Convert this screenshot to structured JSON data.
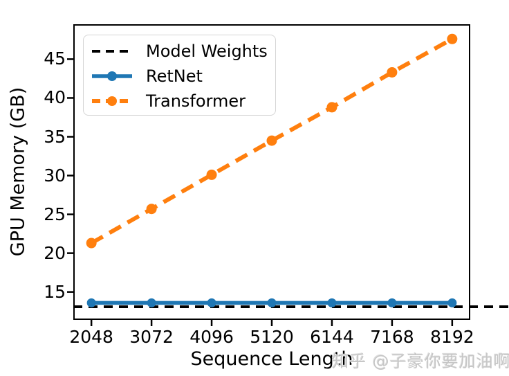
{
  "figure": {
    "background": "#ffffff",
    "watermark": "知乎 @子豪你要加油啊",
    "watermark_color": "#c6c6c6"
  },
  "chart_data": {
    "type": "line",
    "title": "",
    "xlabel": "Sequence Length",
    "ylabel": "GPU Memory (GB)",
    "x": [
      2048,
      3072,
      4096,
      5120,
      6144,
      7168,
      8192
    ],
    "series": [
      {
        "name": "Model Weights",
        "color": "#000000",
        "line_style": "dashed",
        "marker": false,
        "constant_value": 13.1,
        "extends_past_right_spine": true,
        "line_width": 4
      },
      {
        "name": "RetNet",
        "color": "#1f77b4",
        "line_style": "solid",
        "marker": true,
        "values": [
          13.6,
          13.6,
          13.6,
          13.6,
          13.6,
          13.6,
          13.6
        ],
        "line_width": 5.5
      },
      {
        "name": "Transformer",
        "color": "#ff7f0e",
        "line_style": "dashed",
        "marker": true,
        "values": [
          21.3,
          25.7,
          30.1,
          34.5,
          38.8,
          43.3,
          47.6
        ],
        "line_width": 6
      }
    ],
    "axes": {
      "xlim": [
        1740,
        8500
      ],
      "ylim": [
        11.4,
        49.5
      ],
      "xticks": [
        2048,
        3072,
        4096,
        5120,
        6144,
        7168,
        8192
      ],
      "yticks": [
        15,
        20,
        25,
        30,
        35,
        40,
        45
      ],
      "grid": false,
      "spine_color": "#000000"
    },
    "legend": {
      "position": "upper left",
      "entries": [
        "Model Weights",
        "RetNet",
        "Transformer"
      ]
    }
  }
}
